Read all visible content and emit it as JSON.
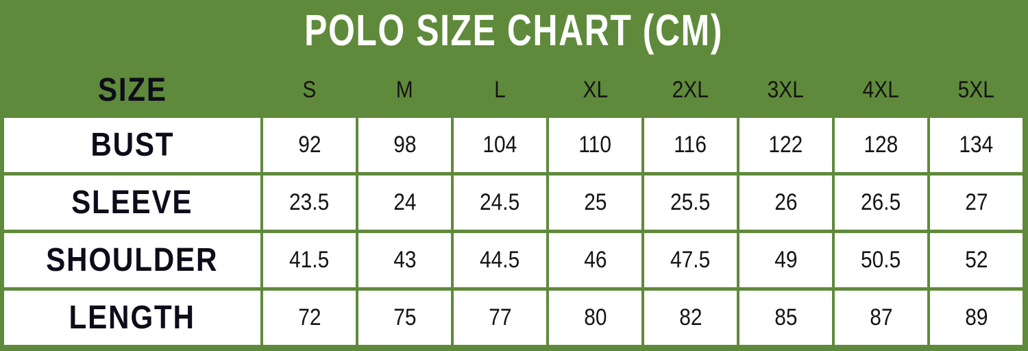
{
  "title": "POLO SIZE CHART (CM)",
  "table": {
    "header": [
      "SIZE",
      "S",
      "M",
      "L",
      "XL",
      "2XL",
      "3XL",
      "4XL",
      "5XL"
    ],
    "rows": [
      [
        "BUST",
        92,
        98,
        104,
        110,
        116,
        122,
        128,
        134
      ],
      [
        "SLEEVE",
        23.5,
        24,
        24.5,
        25,
        25.5,
        26,
        26.5,
        27
      ],
      [
        "SHOULDER",
        41.5,
        43,
        44.5,
        46,
        47.5,
        49,
        50.5,
        52
      ],
      [
        "LENGTH",
        72,
        75,
        77,
        80,
        82,
        85,
        87,
        89
      ]
    ]
  }
}
